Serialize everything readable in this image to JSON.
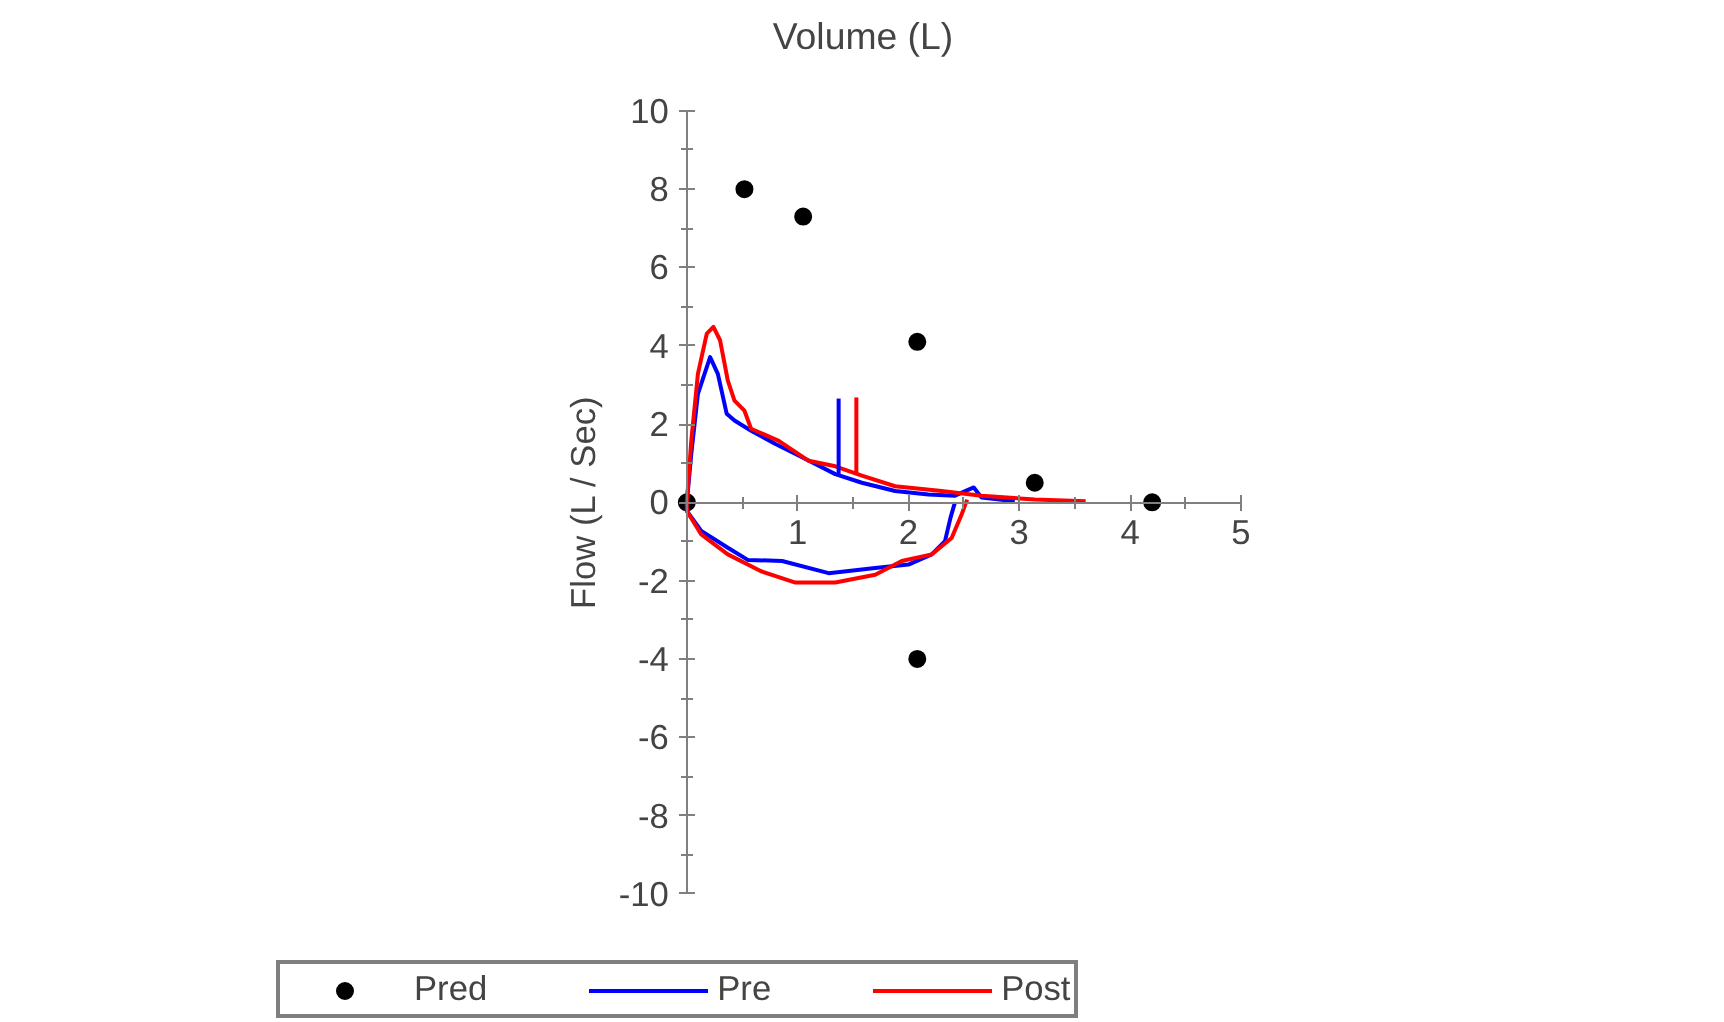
{
  "chart_data": {
    "type": "line",
    "xlabel": "Volume (L)",
    "ylabel": "Flow (L / Sec)",
    "xlim": [
      0,
      5
    ],
    "ylim": [
      -10,
      10
    ],
    "xticks": [
      {
        "value": 0,
        "label": null
      },
      1,
      2,
      3,
      4,
      5
    ],
    "yticks": [
      -10,
      -8,
      -6,
      -4,
      -2,
      0,
      2,
      4,
      6,
      8,
      10
    ],
    "grid": false,
    "legend": "bottom",
    "series": [
      {
        "name": "Pred",
        "type": "scatter",
        "marker": "circle",
        "color": "#000000",
        "x": [
          0,
          0.52,
          1.05,
          2.08,
          2.08,
          3.14,
          4.2
        ],
        "values": [
          0,
          8.0,
          7.3,
          4.1,
          -4.0,
          0.5,
          0
        ]
      },
      {
        "name": "Pre",
        "color": "#0000ff",
        "x": [
          2.42,
          2.38,
          2.33,
          2.21,
          2.0,
          1.7,
          1.28,
          0.86,
          0.55,
          0.37,
          0.13,
          0,
          0,
          0.04,
          0.1,
          0.21,
          0.28,
          0.36,
          0.43,
          0.58,
          0.8,
          1.04,
          1.34,
          1.58,
          1.88,
          2.18,
          2.42,
          2.59,
          2.66,
          2.96
        ],
        "values": [
          0,
          -0.39,
          -0.99,
          -1.33,
          -1.59,
          -1.68,
          -1.81,
          -1.5,
          -1.47,
          -1.16,
          -0.73,
          -0.22,
          0,
          1.23,
          2.77,
          3.71,
          3.28,
          2.26,
          2.09,
          1.83,
          1.49,
          1.15,
          0.72,
          0.5,
          0.29,
          0.2,
          0.17,
          0.38,
          0.12,
          0.03
        ]
      },
      {
        "name": "Post",
        "color": "#ff0000",
        "x": [
          2.53,
          2.48,
          2.39,
          2.21,
          1.94,
          1.7,
          1.34,
          0.98,
          0.67,
          0.37,
          0.13,
          0,
          0,
          0.04,
          0.1,
          0.18,
          0.24,
          0.3,
          0.37,
          0.43,
          0.52,
          0.58,
          0.83,
          1.1,
          1.34,
          1.58,
          1.88,
          2.3,
          2.66,
          3.14,
          3.6
        ],
        "values": [
          0.07,
          -0.31,
          -0.91,
          -1.33,
          -1.5,
          -1.85,
          -2.05,
          -2.05,
          -1.76,
          -1.33,
          -0.82,
          -0.22,
          0,
          1.57,
          3.28,
          4.31,
          4.48,
          4.14,
          3.11,
          2.6,
          2.34,
          1.88,
          1.57,
          1.06,
          0.92,
          0.68,
          0.41,
          0.29,
          0.17,
          0.07,
          0.03
        ]
      },
      {
        "color": "#0000ff",
        "x": [
          1.37,
          1.37
        ],
        "values": [
          2.65,
          0.72
        ]
      },
      {
        "color": "#ff0000",
        "x": [
          1.53,
          1.53
        ],
        "values": [
          2.68,
          0.7
        ]
      }
    ]
  }
}
